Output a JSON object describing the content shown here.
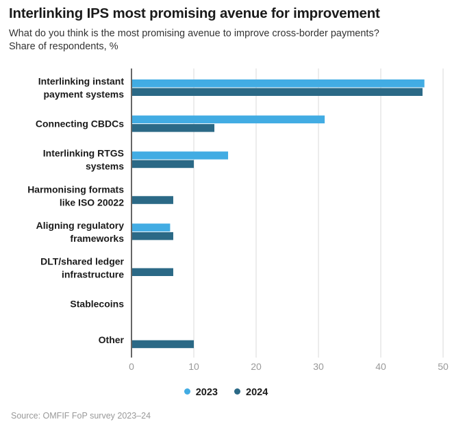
{
  "title": "Interlinking IPS most promising avenue for improvement",
  "subtitle_line1": "What do you think is the most promising avenue to improve cross-border payments?",
  "subtitle_line2": "Share of respondents, %",
  "source": "Source: OMFIF FoP survey 2023–24",
  "colors": {
    "2023": "#42ace3",
    "2024": "#2b6986",
    "grid": "#e6e6e6",
    "axis": "#333333"
  },
  "chart_data": {
    "type": "bar",
    "orientation": "horizontal",
    "categories": [
      [
        "Interlinking instant",
        "payment systems"
      ],
      [
        "Connecting CBDCs"
      ],
      [
        "Interlinking RTGS",
        "systems"
      ],
      [
        "Harmonising formats",
        "like ISO 20022"
      ],
      [
        "Aligning regulatory",
        "frameworks"
      ],
      [
        "DLT/shared ledger",
        "infrastructure"
      ],
      [
        "Stablecoins"
      ],
      [
        "Other"
      ]
    ],
    "series": [
      {
        "name": "2023",
        "values": [
          47,
          31,
          15.5,
          null,
          6.2,
          null,
          null,
          null
        ]
      },
      {
        "name": "2024",
        "values": [
          46.7,
          13.3,
          10,
          6.7,
          6.7,
          6.7,
          null,
          10
        ]
      }
    ],
    "xlim": [
      0,
      50
    ],
    "xticks": [
      "0",
      "10",
      "20",
      "30",
      "40",
      "50"
    ],
    "grid": true,
    "legend": "bottom"
  }
}
